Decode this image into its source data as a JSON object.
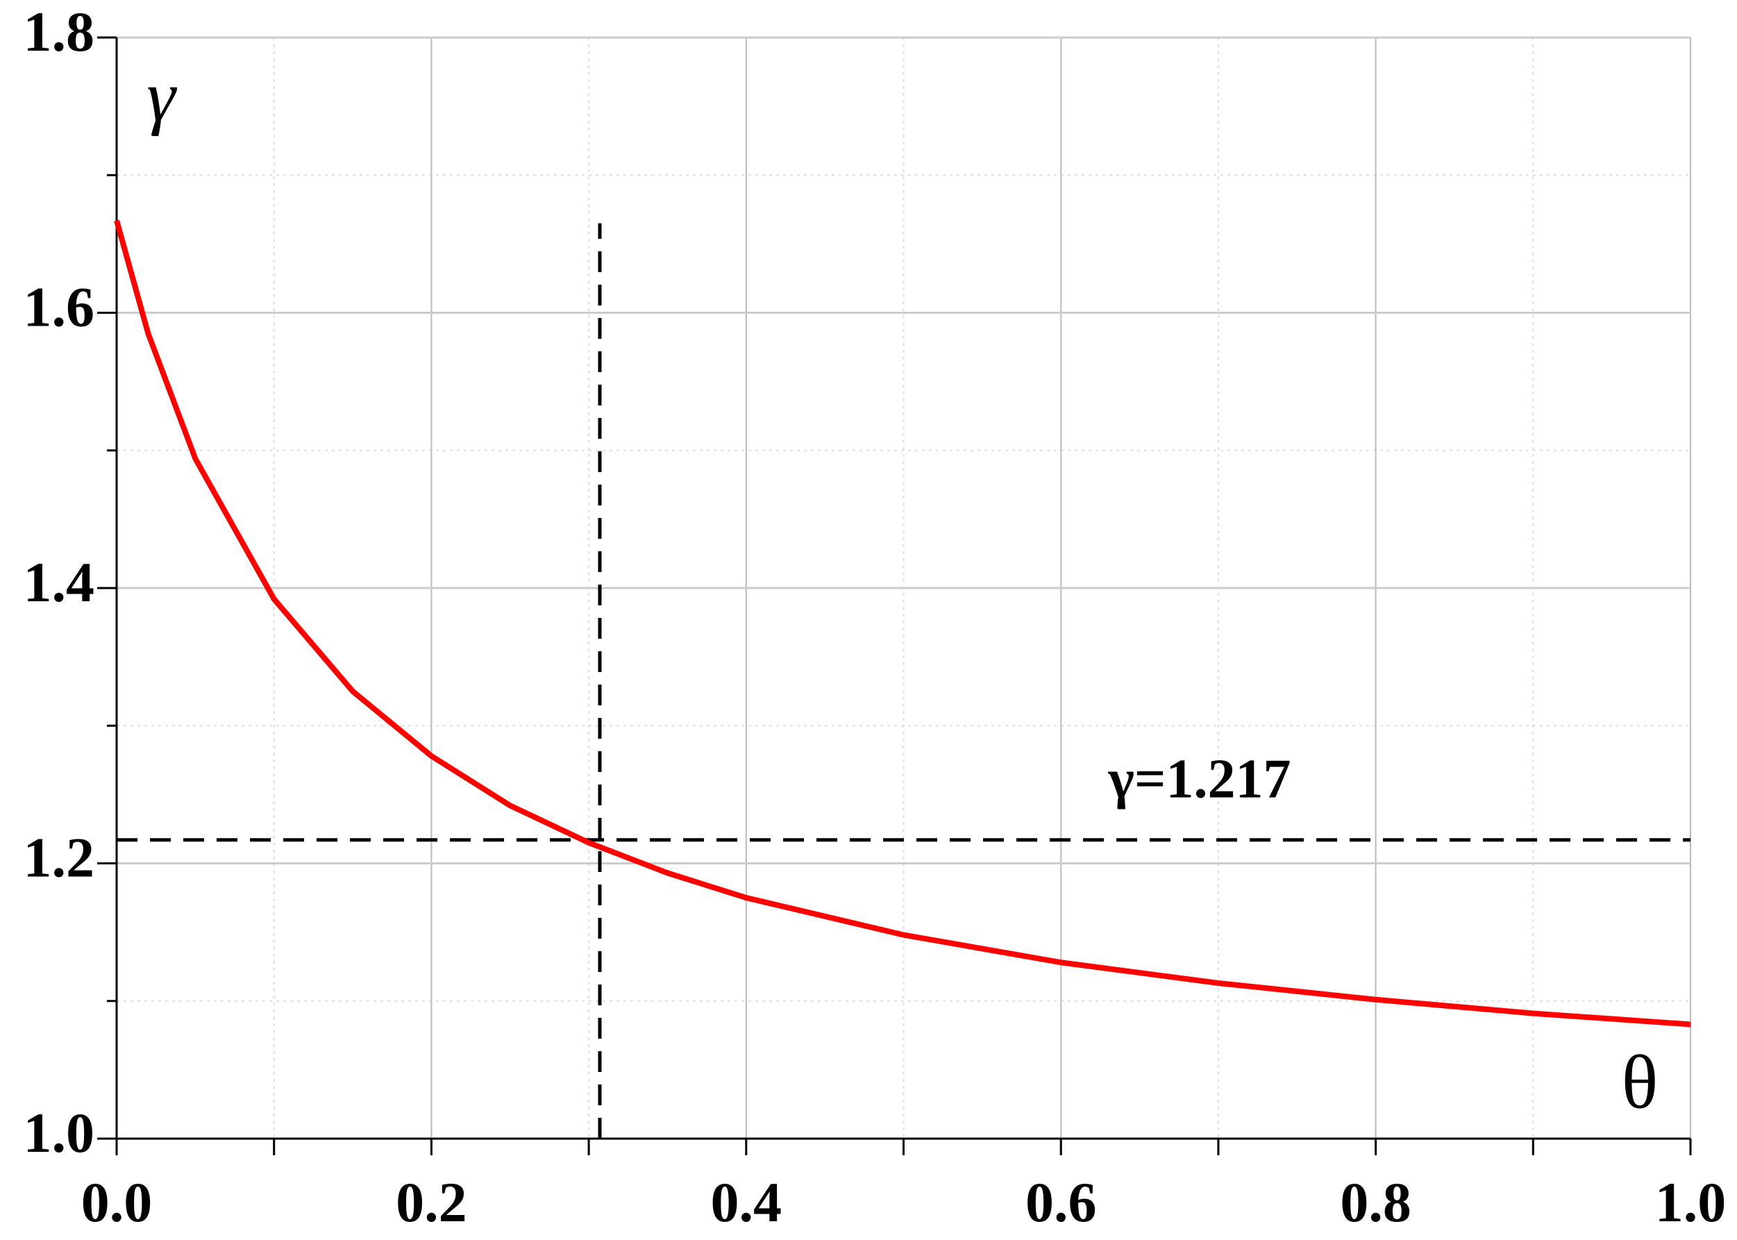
{
  "chart_data": {
    "type": "line",
    "x_label": "θ",
    "y_label": "γ",
    "x": [
      0,
      0.02,
      0.05,
      0.1,
      0.15,
      0.2,
      0.25,
      0.3,
      0.35,
      0.4,
      0.5,
      0.6,
      0.7,
      0.8,
      0.9,
      1.0
    ],
    "series": [
      {
        "color": "#ff0000",
        "values": [
          1.667,
          1.585,
          1.494,
          1.392,
          1.325,
          1.278,
          1.242,
          1.215,
          1.193,
          1.175,
          1.148,
          1.128,
          1.113,
          1.101,
          1.091,
          1.083
        ]
      }
    ],
    "xlim": [
      0,
      1
    ],
    "ylim": [
      1.0,
      1.8
    ],
    "xticks": [
      {
        "value": 0,
        "label": "0.0"
      },
      0.2,
      0.4,
      0.6,
      0.8,
      {
        "value": 1,
        "label": "1.0"
      }
    ],
    "yticks": [
      {
        "value": 1,
        "label": "1.0"
      },
      1.2,
      1.4,
      1.6,
      1.8
    ],
    "x_minor_ticks": [
      0.1,
      0.3,
      0.5,
      0.7,
      0.9
    ],
    "y_minor_ticks": [
      1.1,
      1.3,
      1.5,
      1.7
    ],
    "grid": true,
    "reference_lines": {
      "x": 0.307,
      "x_top": 1.665,
      "y": 1.217,
      "label": "γ=1.217"
    }
  }
}
